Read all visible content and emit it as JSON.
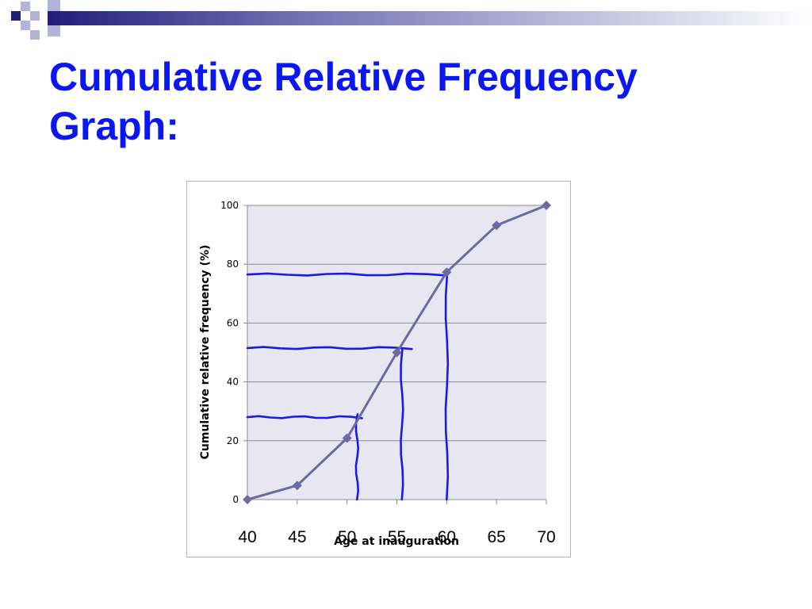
{
  "slide": {
    "title": "Cumulative Relative Frequency Graph:"
  },
  "colors": {
    "title": "#0b17f2",
    "plot_background": "#e8e6f0",
    "series_line": "#6a6aa4",
    "annotation_ink": "#1a1ae6"
  },
  "chart_data": {
    "type": "line",
    "title": "",
    "xlabel": "Age at inauguration",
    "ylabel": "Cumulative relative frequency (%)",
    "x": [
      40,
      45,
      50,
      55,
      60,
      65,
      70
    ],
    "xticks": [
      "40",
      "45",
      "50",
      "55",
      "60",
      "65",
      "70"
    ],
    "yticks": [
      "0",
      "20",
      "40",
      "60",
      "80",
      "100"
    ],
    "xlim": [
      40,
      70
    ],
    "ylim": [
      0,
      100
    ],
    "grid": true,
    "legend": "none",
    "marker": "diamond",
    "series": [
      {
        "values": [
          0,
          4.8,
          20.9,
          50,
          77.3,
          93.2,
          100
        ]
      }
    ],
    "hand_annotations": [
      {
        "kind": "horizontal",
        "y": 76.5,
        "x_from": 40,
        "x_to": 60
      },
      {
        "kind": "vertical",
        "x": 60,
        "y_from": 0,
        "y_to": 77
      },
      {
        "kind": "horizontal",
        "y": 51.5,
        "x_from": 40,
        "x_to": 56.5
      },
      {
        "kind": "vertical",
        "x": 55.5,
        "y_from": 0,
        "y_to": 51
      },
      {
        "kind": "horizontal",
        "y": 28,
        "x_from": 40,
        "x_to": 51.5
      },
      {
        "kind": "vertical",
        "x": 51,
        "y_from": 0,
        "y_to": 29
      }
    ]
  }
}
